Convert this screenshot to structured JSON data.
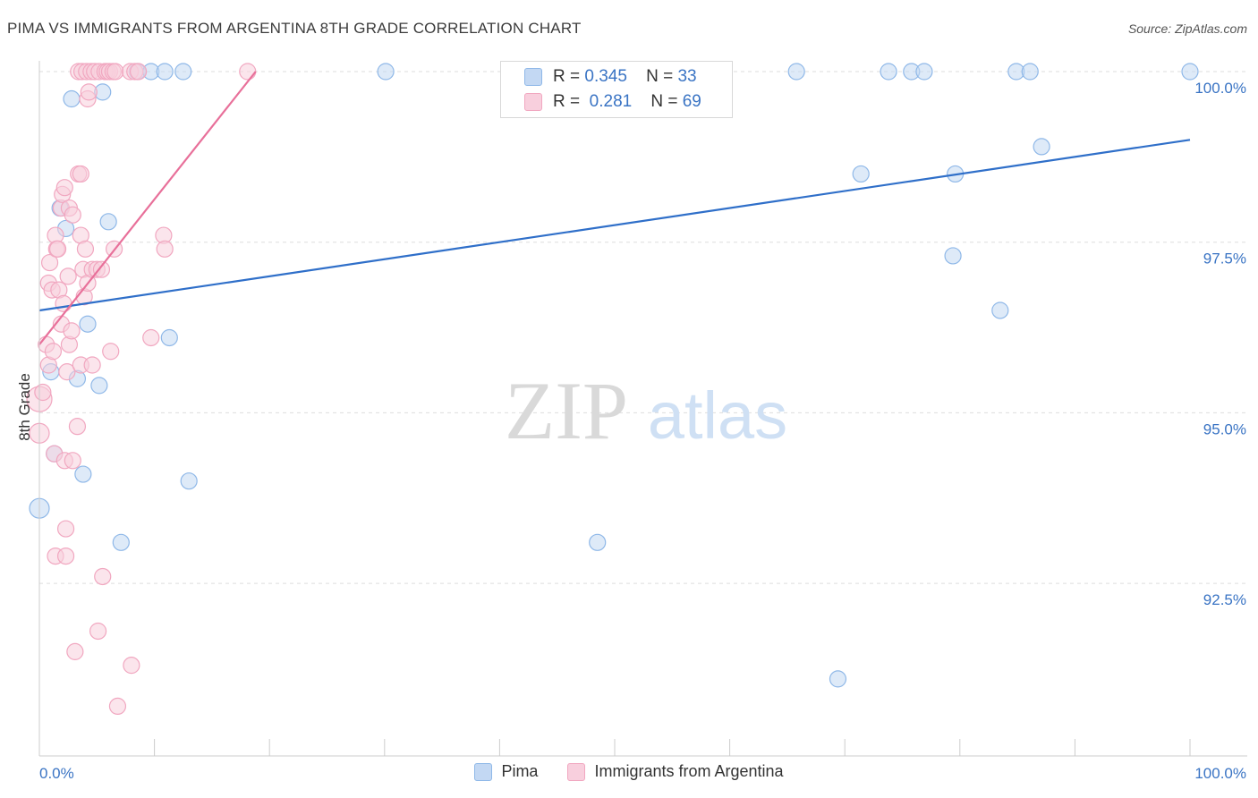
{
  "chart_data": {
    "type": "scatter",
    "title": "PIMA VS IMMIGRANTS FROM ARGENTINA 8TH GRADE CORRELATION CHART",
    "source": "Source: ZipAtlas.com",
    "ylabel": "8th Grade",
    "xlabel": "",
    "xlim": [
      0,
      100
    ],
    "ylim": [
      90.2,
      100.4
    ],
    "x_tick_labels": [
      "0.0%",
      "100.0%"
    ],
    "y_tick_labels": [
      {
        "value": 100.0,
        "label": "100.0%"
      },
      {
        "value": 97.5,
        "label": "97.5%"
      },
      {
        "value": 95.0,
        "label": "95.0%"
      },
      {
        "value": 92.5,
        "label": "92.5%"
      }
    ],
    "watermark": {
      "part1": "ZIP",
      "part2": "atlas"
    },
    "stats": [
      {
        "r_label": "R =",
        "r_value": "0.345",
        "n_label": "N =",
        "n_value": "33"
      },
      {
        "r_label": "R =",
        "r_value": "0.281",
        "n_label": "N =",
        "n_value": "69"
      }
    ],
    "series": [
      {
        "name": "Pima",
        "color": "#8fb8e8",
        "fill": "#c3d8f3",
        "line_color": "#2f6fc9",
        "trend": {
          "x": [
            0,
            100
          ],
          "y": [
            96.5,
            99.0
          ]
        },
        "points": [
          [
            0.0,
            93.6,
            22
          ],
          [
            1.0,
            95.6,
            18
          ],
          [
            1.3,
            94.4,
            18
          ],
          [
            1.8,
            98.0,
            18
          ],
          [
            2.3,
            97.7,
            18
          ],
          [
            2.8,
            99.6,
            18
          ],
          [
            3.3,
            95.5,
            18
          ],
          [
            3.8,
            94.1,
            18
          ],
          [
            4.2,
            96.3,
            18
          ],
          [
            5.2,
            95.4,
            18
          ],
          [
            5.5,
            99.7,
            18
          ],
          [
            6.0,
            97.8,
            18
          ],
          [
            7.1,
            93.1,
            18
          ],
          [
            8.5,
            100.0,
            18
          ],
          [
            9.7,
            100.0,
            18
          ],
          [
            10.9,
            100.0,
            18
          ],
          [
            11.3,
            96.1,
            18
          ],
          [
            12.5,
            100.0,
            18
          ],
          [
            13.0,
            94.0,
            18
          ],
          [
            30.1,
            100.0,
            18
          ],
          [
            48.5,
            93.1,
            18
          ],
          [
            69.4,
            91.1,
            18
          ],
          [
            65.8,
            100.0,
            18
          ],
          [
            71.4,
            98.5,
            18
          ],
          [
            73.8,
            100.0,
            18
          ],
          [
            75.8,
            100.0,
            18
          ],
          [
            76.9,
            100.0,
            18
          ],
          [
            79.4,
            97.3,
            18
          ],
          [
            79.6,
            98.5,
            18
          ],
          [
            83.5,
            96.5,
            18
          ],
          [
            84.9,
            100.0,
            18
          ],
          [
            86.1,
            100.0,
            18
          ],
          [
            87.1,
            98.9,
            18
          ],
          [
            100.0,
            100.0,
            18
          ]
        ]
      },
      {
        "name": "Immigrants from Argentina",
        "color": "#f1a7c0",
        "fill": "#f8cfdd",
        "line_color": "#e8709a",
        "trend": {
          "x": [
            0.0,
            18.8
          ],
          "y": [
            96.0,
            100.0
          ]
        },
        "points": [
          [
            0.0,
            95.2,
            28
          ],
          [
            0.0,
            94.7,
            22
          ],
          [
            0.3,
            95.3,
            18
          ],
          [
            0.6,
            96.0,
            18
          ],
          [
            0.8,
            95.7,
            18
          ],
          [
            0.8,
            96.9,
            18
          ],
          [
            0.9,
            97.2,
            18
          ],
          [
            1.1,
            96.8,
            18
          ],
          [
            1.2,
            95.9,
            18
          ],
          [
            1.3,
            94.4,
            18
          ],
          [
            1.4,
            97.6,
            18
          ],
          [
            1.4,
            92.9,
            18
          ],
          [
            1.5,
            97.4,
            18
          ],
          [
            1.6,
            97.4,
            18
          ],
          [
            1.7,
            96.8,
            18
          ],
          [
            1.9,
            98.0,
            18
          ],
          [
            1.9,
            96.3,
            18
          ],
          [
            2.0,
            98.2,
            18
          ],
          [
            2.1,
            96.6,
            18
          ],
          [
            2.2,
            94.3,
            18
          ],
          [
            2.2,
            98.3,
            18
          ],
          [
            2.3,
            92.9,
            18
          ],
          [
            2.3,
            93.3,
            18
          ],
          [
            2.4,
            95.6,
            18
          ],
          [
            2.5,
            97.0,
            18
          ],
          [
            2.6,
            98.0,
            18
          ],
          [
            2.6,
            96.0,
            18
          ],
          [
            2.8,
            96.2,
            18
          ],
          [
            2.9,
            94.3,
            18
          ],
          [
            2.9,
            97.9,
            18
          ],
          [
            3.1,
            91.5,
            18
          ],
          [
            3.3,
            94.8,
            18
          ],
          [
            3.4,
            98.5,
            18
          ],
          [
            3.4,
            100.0,
            18
          ],
          [
            3.6,
            98.5,
            18
          ],
          [
            3.6,
            97.6,
            18
          ],
          [
            3.6,
            95.7,
            18
          ],
          [
            3.7,
            100.0,
            18
          ],
          [
            3.8,
            97.1,
            18
          ],
          [
            3.9,
            96.7,
            18
          ],
          [
            4.0,
            97.4,
            18
          ],
          [
            4.1,
            100.0,
            18
          ],
          [
            4.2,
            99.6,
            18
          ],
          [
            4.2,
            96.9,
            18
          ],
          [
            4.3,
            99.7,
            18
          ],
          [
            4.5,
            100.0,
            18
          ],
          [
            4.6,
            97.1,
            18
          ],
          [
            4.6,
            95.7,
            18
          ],
          [
            4.8,
            100.0,
            18
          ],
          [
            5.0,
            97.1,
            18
          ],
          [
            5.1,
            91.8,
            18
          ],
          [
            5.2,
            100.0,
            18
          ],
          [
            5.4,
            97.1,
            18
          ],
          [
            5.5,
            92.6,
            18
          ],
          [
            5.7,
            100.0,
            18
          ],
          [
            5.9,
            100.0,
            18
          ],
          [
            6.1,
            100.0,
            18
          ],
          [
            6.2,
            95.9,
            18
          ],
          [
            6.4,
            100.0,
            18
          ],
          [
            6.5,
            97.4,
            18
          ],
          [
            6.6,
            100.0,
            18
          ],
          [
            6.8,
            90.7,
            18
          ],
          [
            7.9,
            100.0,
            18
          ],
          [
            8.0,
            91.3,
            18
          ],
          [
            8.3,
            100.0,
            18
          ],
          [
            8.6,
            100.0,
            18
          ],
          [
            9.7,
            96.1,
            18
          ],
          [
            10.8,
            97.6,
            18
          ],
          [
            10.9,
            97.4,
            18
          ],
          [
            18.1,
            100.0,
            18
          ]
        ]
      }
    ]
  }
}
